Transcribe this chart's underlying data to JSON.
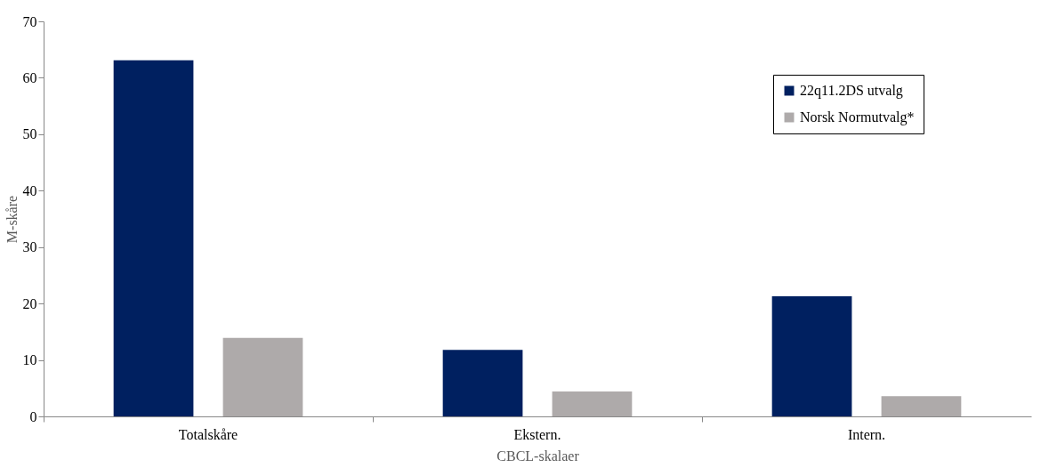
{
  "chart_data": {
    "type": "bar",
    "xlabel": "CBCL-skalaer",
    "ylabel": "M-skåre",
    "categories": [
      "Totalskåre",
      "Ekstern.",
      "Intern."
    ],
    "series": [
      {
        "name": "22q11.2DS utvalg",
        "color": "#002060",
        "values": [
          63.1,
          11.8,
          21.3
        ]
      },
      {
        "name": "Norsk Normutvalg*",
        "color": "#aeaaaa",
        "values": [
          13.9,
          4.4,
          3.6
        ]
      }
    ],
    "ylim": [
      0,
      70
    ],
    "yticks": [
      0,
      10,
      20,
      30,
      40,
      50,
      60,
      70
    ],
    "grid": false,
    "legend": "top right"
  }
}
